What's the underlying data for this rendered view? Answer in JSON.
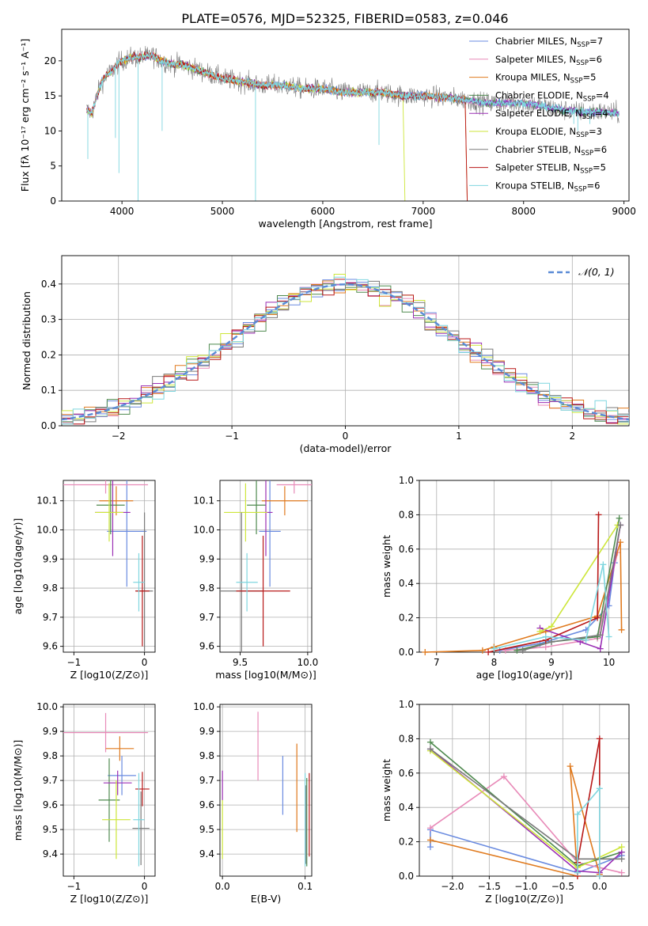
{
  "figure_title": "PLATE=0576, MJD=52325, FIBERID=0583, z=0.046",
  "colors": {
    "Chabrier MILES": "#6a8be0",
    "Salpeter MILES": "#e88ab8",
    "Kroupa MILES": "#e07a1e",
    "Chabrier ELODIE": "#4f8a4f",
    "Salpeter ELODIE": "#9b2fb5",
    "Kroupa ELODIE": "#cde63a",
    "Chabrier STELIB": "#7a7a7a",
    "Salpeter STELIB": "#b81818",
    "Kroupa STELIB": "#7fd6df"
  },
  "models": [
    {
      "key": "Chabrier MILES",
      "base": "Chabrier MILES, N",
      "sub": "SSP",
      "tail": "=7"
    },
    {
      "key": "Salpeter MILES",
      "base": "Salpeter MILES, N",
      "sub": "SSP",
      "tail": "=6"
    },
    {
      "key": "Kroupa MILES",
      "base": "Kroupa MILES, N",
      "sub": "SSP",
      "tail": "=5"
    },
    {
      "key": "Chabrier ELODIE",
      "base": "Chabrier ELODIE, N",
      "sub": "SSP",
      "tail": "=4"
    },
    {
      "key": "Salpeter ELODIE",
      "base": "Salpeter ELODIE, N",
      "sub": "SSP",
      "tail": "=4"
    },
    {
      "key": "Kroupa ELODIE",
      "base": "Kroupa ELODIE, N",
      "sub": "SSP",
      "tail": "=3"
    },
    {
      "key": "Chabrier STELIB",
      "base": "Chabrier STELIB, N",
      "sub": "SSP",
      "tail": "=6"
    },
    {
      "key": "Salpeter STELIB",
      "base": "Salpeter STELIB, N",
      "sub": "SSP",
      "tail": "=5"
    },
    {
      "key": "Kroupa STELIB",
      "base": "Kroupa STELIB, N",
      "sub": "SSP",
      "tail": "=6"
    }
  ],
  "chart_data": [
    {
      "id": "spectrum",
      "type": "line",
      "xlabel": "wavelength [Angstrom, rest frame]",
      "ylabel": "Flux [fλ 10⁻¹⁷ erg cm⁻² s⁻¹ A⁻¹]",
      "xlim": [
        3400,
        9050
      ],
      "ylim": [
        0,
        24.5
      ],
      "xticks": [
        4000,
        5000,
        6000,
        7000,
        8000,
        9000
      ],
      "yticks": [
        0,
        5,
        10,
        15,
        20
      ],
      "observed_envelope": {
        "x": [
          3650,
          3700,
          3750,
          3800,
          3850,
          3900,
          3950,
          4000,
          4100,
          4200,
          4300,
          4400,
          4500,
          4600,
          4800,
          5000,
          5200,
          5400,
          5600,
          5800,
          6000,
          6200,
          6400,
          6600,
          6800,
          7000,
          7200,
          7400,
          7600,
          7800,
          8000,
          8200,
          8400,
          8600,
          8800,
          8950
        ],
        "y": [
          13,
          12.5,
          15,
          17,
          18,
          18.5,
          19.5,
          20,
          20.5,
          20.5,
          20.8,
          20,
          19.5,
          19.5,
          18.5,
          17.5,
          17,
          16.5,
          16.5,
          16,
          16,
          15.5,
          15.5,
          15.5,
          15,
          15,
          14.8,
          14.5,
          14,
          14,
          14,
          13.5,
          13,
          12.7,
          12.7,
          12.5
        ]
      },
      "truncated_models": [
        {
          "model": "Kroupa ELODIE",
          "x_end": 6800
        },
        {
          "model": "Salpeter STELIB",
          "x_end": 7420
        },
        {
          "model": "Kroupa MILES",
          "x_end": 7420
        }
      ],
      "legend": "upper right"
    },
    {
      "id": "residuals",
      "type": "histogram",
      "xlabel": "(data-model)/error",
      "ylabel": "Normed distribution",
      "xlim": [
        -2.5,
        2.5
      ],
      "ylim": [
        0,
        0.48
      ],
      "xticks": [
        -2,
        -1,
        0,
        1,
        2
      ],
      "yticks": [
        0.0,
        0.1,
        0.2,
        0.3,
        0.4
      ],
      "bins": 50,
      "reference_curve": "𝒩(0, 1)",
      "legend": "upper right"
    },
    {
      "id": "age-vs-Z",
      "type": "errorbar",
      "xlabel": "Z [log10(Z/Z⊙)]",
      "ylabel": "age  [log10(age/yr)]",
      "xlim": [
        -1.15,
        0.15
      ],
      "ylim": [
        9.58,
        10.17
      ],
      "xticks": [
        -1,
        0
      ],
      "yticks": [
        9.6,
        9.7,
        9.8,
        9.9,
        10.0,
        10.1
      ],
      "points": [
        {
          "model": "Chabrier MILES",
          "x": -0.25,
          "xerr": 0.28,
          "y": 9.995,
          "yerr": 0.19
        },
        {
          "model": "Salpeter MILES",
          "x": -0.55,
          "xerr": 0.6,
          "y": 10.155,
          "yerr": 0.03
        },
        {
          "model": "Kroupa MILES",
          "x": -0.4,
          "xerr": 0.24,
          "y": 10.1,
          "yerr": 0.05
        },
        {
          "model": "Chabrier ELODIE",
          "x": -0.48,
          "xerr": 0.2,
          "y": 10.085,
          "yerr": 0.1
        },
        {
          "model": "Salpeter ELODIE",
          "x": -0.45,
          "xerr": 0.25,
          "y": 10.06,
          "yerr": 0.15
        },
        {
          "model": "Kroupa ELODIE",
          "x": -0.5,
          "xerr": 0.2,
          "y": 10.06,
          "yerr": 0.1
        },
        {
          "model": "Chabrier STELIB",
          "x": 0.0,
          "xerr": 0.12,
          "y": 9.79,
          "yerr": 0.27
        },
        {
          "model": "Salpeter STELIB",
          "x": -0.03,
          "xerr": 0.1,
          "y": 9.79,
          "yerr": 0.19
        },
        {
          "model": "Kroupa STELIB",
          "x": -0.08,
          "xerr": 0.08,
          "y": 9.82,
          "yerr": 0.1
        }
      ]
    },
    {
      "id": "age-vs-mass",
      "type": "errorbar",
      "xlabel": "mass [log10(M/M⊙)]",
      "ylabel": "",
      "xlim": [
        9.35,
        10.03
      ],
      "ylim": [
        9.58,
        10.17
      ],
      "xticks": [
        9.5,
        10.0
      ],
      "yticks": [
        9.6,
        9.7,
        9.8,
        9.9,
        10.0,
        10.1
      ],
      "points": [
        {
          "model": "Chabrier MILES",
          "x": 9.72,
          "xerr": 0.08,
          "y": 9.995,
          "yerr": 0.19
        },
        {
          "model": "Salpeter MILES",
          "x": 9.9,
          "xerr": 0.13,
          "y": 10.155,
          "yerr": 0.03
        },
        {
          "model": "Kroupa MILES",
          "x": 9.83,
          "xerr": 0.17,
          "y": 10.1,
          "yerr": 0.05
        },
        {
          "model": "Chabrier ELODIE",
          "x": 9.62,
          "xerr": 0.07,
          "y": 10.085,
          "yerr": 0.1
        },
        {
          "model": "Salpeter ELODIE",
          "x": 9.69,
          "xerr": 0.05,
          "y": 10.06,
          "yerr": 0.15
        },
        {
          "model": "Kroupa ELODIE",
          "x": 9.54,
          "xerr": 0.16,
          "y": 10.06,
          "yerr": 0.1
        },
        {
          "model": "Chabrier STELIB",
          "x": 9.51,
          "xerr": 0.16,
          "y": 9.79,
          "yerr": 0.27
        },
        {
          "model": "Salpeter STELIB",
          "x": 9.67,
          "xerr": 0.2,
          "y": 9.79,
          "yerr": 0.19
        },
        {
          "model": "Kroupa STELIB",
          "x": 9.55,
          "xerr": 0.08,
          "y": 9.82,
          "yerr": 0.1
        }
      ]
    },
    {
      "id": "weight-vs-age",
      "type": "line",
      "xlabel": "age  [log10(age/yr)]",
      "ylabel": "mass weight",
      "xlim": [
        6.7,
        10.35
      ],
      "ylim": [
        0,
        1
      ],
      "xticks": [
        7,
        8,
        9,
        10
      ],
      "yticks": [
        0.0,
        0.2,
        0.4,
        0.6,
        0.8,
        1.0
      ],
      "series": [
        {
          "model": "Chabrier MILES",
          "x": [
            8.1,
            8.8,
            9.6,
            10.0,
            10.1
          ],
          "y": [
            0.01,
            0.05,
            0.13,
            0.27,
            0.52
          ]
        },
        {
          "model": "Salpeter MILES",
          "x": [
            8.2,
            8.9,
            9.8,
            10.15
          ],
          "y": [
            0.01,
            0.03,
            0.08,
            0.58
          ]
        },
        {
          "model": "Kroupa MILES",
          "x": [
            6.8,
            7.8,
            8.0,
            8.9,
            9.8,
            10.2,
            10.22
          ],
          "y": [
            0.0,
            0.01,
            0.03,
            0.12,
            0.21,
            0.64,
            0.13
          ]
        },
        {
          "model": "Chabrier ELODIE",
          "x": [
            8.4,
            9.0,
            9.8,
            10.18
          ],
          "y": [
            0.01,
            0.06,
            0.09,
            0.78
          ]
        },
        {
          "model": "Salpeter ELODIE",
          "x": [
            8.8,
            9.5,
            9.85,
            10.2
          ],
          "y": [
            0.14,
            0.06,
            0.02,
            0.74
          ]
        },
        {
          "model": "Kroupa ELODIE",
          "x": [
            8.8,
            9.0,
            10.15
          ],
          "y": [
            0.12,
            0.15,
            0.74
          ]
        },
        {
          "model": "Chabrier STELIB",
          "x": [
            8.5,
            9.0,
            9.85,
            10.2
          ],
          "y": [
            0.01,
            0.06,
            0.1,
            0.74
          ]
        },
        {
          "model": "Salpeter STELIB",
          "x": [
            7.9,
            8.9,
            9.8,
            9.82
          ],
          "y": [
            0.0,
            0.07,
            0.2,
            0.8
          ]
        },
        {
          "model": "Kroupa STELIB",
          "x": [
            8.0,
            8.9,
            9.6,
            9.9,
            10.0
          ],
          "y": [
            0.02,
            0.09,
            0.07,
            0.51,
            0.09
          ]
        }
      ]
    },
    {
      "id": "mass-vs-Z",
      "type": "errorbar",
      "xlabel": "Z [log10(Z/Z⊙)]",
      "ylabel": "mass [log10(M/M⊙)]",
      "xlim": [
        -1.15,
        0.15
      ],
      "ylim": [
        9.31,
        10.01
      ],
      "xticks": [
        -1,
        0
      ],
      "yticks": [
        9.4,
        9.5,
        9.6,
        9.7,
        9.8,
        9.9,
        10.0
      ],
      "points": [
        {
          "model": "Chabrier MILES",
          "x": -0.32,
          "xerr": 0.2,
          "y": 9.72,
          "yerr": 0.08
        },
        {
          "model": "Salpeter MILES",
          "x": -0.55,
          "xerr": 0.6,
          "y": 9.895,
          "yerr": 0.08
        },
        {
          "model": "Kroupa MILES",
          "x": -0.35,
          "xerr": 0.2,
          "y": 9.83,
          "yerr": 0.05
        },
        {
          "model": "Chabrier ELODIE",
          "x": -0.5,
          "xerr": 0.15,
          "y": 9.62,
          "yerr": 0.17
        },
        {
          "model": "Salpeter ELODIE",
          "x": -0.38,
          "xerr": 0.2,
          "y": 9.69,
          "yerr": 0.05
        },
        {
          "model": "Kroupa ELODIE",
          "x": -0.4,
          "xerr": 0.2,
          "y": 9.54,
          "yerr": 0.16
        },
        {
          "model": "Chabrier STELIB",
          "x": -0.05,
          "xerr": 0.12,
          "y": 9.505,
          "yerr": 0.15
        },
        {
          "model": "Salpeter STELIB",
          "x": -0.03,
          "xerr": 0.1,
          "y": 9.665,
          "yerr": 0.07
        },
        {
          "model": "Kroupa STELIB",
          "x": -0.08,
          "xerr": 0.08,
          "y": 9.54,
          "yerr": 0.19
        }
      ]
    },
    {
      "id": "mass-vs-ebv",
      "type": "errorbar",
      "xlabel": "E(B-V)",
      "ylabel": "",
      "xlim": [
        -0.003,
        0.108
      ],
      "ylim": [
        9.31,
        10.01
      ],
      "xticks": [
        0.0,
        0.1
      ],
      "yticks": [
        9.4,
        9.5,
        9.6,
        9.7,
        9.8,
        9.9,
        10.0
      ],
      "points": [
        {
          "model": "Chabrier MILES",
          "x": 0.073,
          "xerr": 0,
          "y": 9.68,
          "yerr": 0.12
        },
        {
          "model": "Salpeter MILES",
          "x": 0.043,
          "xerr": 0,
          "y": 9.84,
          "yerr": 0.14
        },
        {
          "model": "Kroupa MILES",
          "x": 0.09,
          "xerr": 0,
          "y": 9.67,
          "yerr": 0.18
        },
        {
          "model": "Chabrier ELODIE",
          "x": 0.102,
          "xerr": 0,
          "y": 9.53,
          "yerr": 0.18
        },
        {
          "model": "Salpeter ELODIE",
          "x": 0.0,
          "xerr": 0,
          "y": 9.68,
          "yerr": 0.06
        },
        {
          "model": "Kroupa ELODIE",
          "x": 0.0,
          "xerr": 0,
          "y": 9.5,
          "yerr": 0.12
        },
        {
          "model": "Chabrier STELIB",
          "x": 0.101,
          "xerr": 0,
          "y": 9.52,
          "yerr": 0.16
        },
        {
          "model": "Salpeter STELIB",
          "x": 0.105,
          "xerr": 0,
          "y": 9.56,
          "yerr": 0.17
        },
        {
          "model": "Kroupa STELIB",
          "x": 0.1,
          "xerr": 0,
          "y": 9.54,
          "yerr": 0.19
        }
      ]
    },
    {
      "id": "weight-vs-Z",
      "type": "line",
      "xlabel": "Z [log10(Z/Z⊙)]",
      "ylabel": "mass weight",
      "xlim": [
        -2.45,
        0.4
      ],
      "ylim": [
        0,
        1
      ],
      "xticks": [
        -2.0,
        -1.5,
        -1.0,
        -0.5,
        0.0
      ],
      "yticks": [
        0.0,
        0.2,
        0.4,
        0.6,
        0.8,
        1.0
      ],
      "series": [
        {
          "model": "Chabrier MILES",
          "x": [
            -2.3,
            -2.3,
            -0.3,
            0.3
          ],
          "y": [
            0.17,
            0.27,
            0.02,
            0.12
          ]
        },
        {
          "model": "Salpeter MILES",
          "x": [
            -2.3,
            -1.3,
            -0.3,
            0.3
          ],
          "y": [
            0.28,
            0.58,
            0.08,
            0.02
          ]
        },
        {
          "model": "Kroupa MILES",
          "x": [
            -2.3,
            -0.3,
            -0.4,
            0.0
          ],
          "y": [
            0.21,
            0.0,
            0.64,
            0.01
          ]
        },
        {
          "model": "Chabrier ELODIE",
          "x": [
            -2.3,
            -0.3,
            0.3
          ],
          "y": [
            0.78,
            0.06,
            0.14
          ]
        },
        {
          "model": "Salpeter ELODIE",
          "x": [
            -2.3,
            -0.3,
            0.0,
            0.3
          ],
          "y": [
            0.74,
            0.03,
            0.02,
            0.14
          ]
        },
        {
          "model": "Kroupa ELODIE",
          "x": [
            -2.3,
            -0.3,
            0.3
          ],
          "y": [
            0.73,
            0.05,
            0.17
          ]
        },
        {
          "model": "Chabrier STELIB",
          "x": [
            -2.3,
            -0.3,
            0.3
          ],
          "y": [
            0.74,
            0.1,
            0.1
          ]
        },
        {
          "model": "Salpeter STELIB",
          "x": [
            -0.3,
            -0.3,
            0.0,
            0.0
          ],
          "y": [
            0.0,
            0.08,
            0.8,
            0.0
          ]
        },
        {
          "model": "Kroupa STELIB",
          "x": [
            -0.3,
            -0.3,
            0.0,
            0.0
          ],
          "y": [
            0.02,
            0.36,
            0.51,
            0.0
          ]
        }
      ]
    }
  ]
}
